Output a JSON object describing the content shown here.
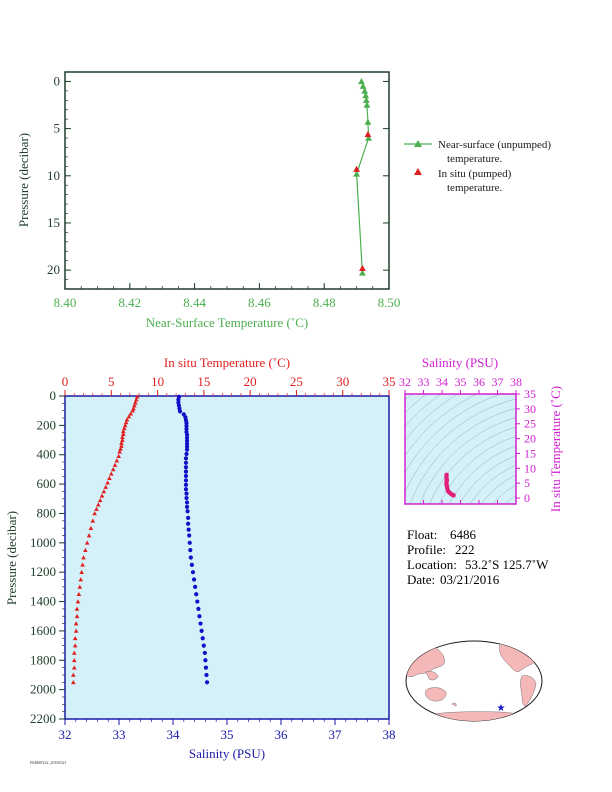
{
  "colors": {
    "green": "#4caf50",
    "dark_green": "#1f3d2a",
    "red": "#e02020",
    "blue": "#1010c8",
    "magenta": "#d020d0",
    "plot_bg": "#d4f0f8",
    "land": "#f4b8b8",
    "ocean": "#ffffff"
  },
  "chart_data": [
    {
      "type": "line",
      "xlabel": "Near-Surface Temperature (˚C)",
      "ylabel": "Pressure (decibar)",
      "xlim": [
        8.4,
        8.5
      ],
      "ylim": [
        22,
        -1
      ],
      "x_ticks": [
        "8.40",
        "8.42",
        "8.44",
        "8.46",
        "8.48",
        "8.50"
      ],
      "y_ticks": [
        "0",
        "5",
        "10",
        "15",
        "20"
      ],
      "series": [
        {
          "name": "Near-surface (unpumped) temperature.",
          "marker": "triangle",
          "points": [
            [
              8.4915,
              0.0
            ],
            [
              8.492,
              0.5
            ],
            [
              8.4925,
              1.0
            ],
            [
              8.4928,
              1.5
            ],
            [
              8.493,
              2.0
            ],
            [
              8.4932,
              2.5
            ],
            [
              8.4935,
              4.3
            ],
            [
              8.4937,
              6.0
            ],
            [
              8.49,
              9.8
            ],
            [
              8.4918,
              20.3
            ]
          ]
        },
        {
          "name": "In situ (pumped) temperature.",
          "marker": "triangle",
          "points": [
            [
              8.4935,
              5.6
            ],
            [
              8.49,
              9.3
            ],
            [
              8.4918,
              19.8
            ]
          ]
        }
      ],
      "legend_position": "right"
    },
    {
      "type": "scatter",
      "xlabel_top": "In situ Temperature (˚C)",
      "xlabel_bottom": "Salinity (PSU)",
      "ylabel": "Pressure (decibar)",
      "xlim_temperature": [
        0,
        35
      ],
      "xlim_salinity": [
        32,
        38
      ],
      "ylim": [
        2200,
        0
      ],
      "x_ticks_top": [
        "0",
        "5",
        "10",
        "15",
        "20",
        "25",
        "30",
        "35"
      ],
      "x_ticks_bottom": [
        "32",
        "33",
        "34",
        "35",
        "36",
        "37",
        "38"
      ],
      "y_ticks": [
        "0",
        "200",
        "400",
        "600",
        "800",
        "1000",
        "1200",
        "1400",
        "1600",
        "1800",
        "2000",
        "2200"
      ],
      "temperature_points": [
        [
          7.8,
          5
        ],
        [
          7.7,
          25
        ],
        [
          7.6,
          45
        ],
        [
          7.5,
          65
        ],
        [
          7.4,
          85
        ],
        [
          7.3,
          100
        ],
        [
          7.1,
          120
        ],
        [
          6.9,
          140
        ],
        [
          6.7,
          160
        ],
        [
          6.6,
          180
        ],
        [
          6.5,
          200
        ],
        [
          6.4,
          220
        ],
        [
          6.3,
          240
        ],
        [
          6.3,
          260
        ],
        [
          6.2,
          280
        ],
        [
          6.2,
          300
        ],
        [
          6.1,
          320
        ],
        [
          6.1,
          340
        ],
        [
          6.0,
          360
        ],
        [
          5.9,
          380
        ],
        [
          5.8,
          410
        ],
        [
          5.6,
          440
        ],
        [
          5.4,
          470
        ],
        [
          5.2,
          500
        ],
        [
          5.0,
          530
        ],
        [
          4.8,
          560
        ],
        [
          4.6,
          590
        ],
        [
          4.4,
          620
        ],
        [
          4.2,
          650
        ],
        [
          4.0,
          680
        ],
        [
          3.8,
          710
        ],
        [
          3.6,
          740
        ],
        [
          3.4,
          770
        ],
        [
          3.2,
          800
        ],
        [
          3.0,
          850
        ],
        [
          2.8,
          900
        ],
        [
          2.6,
          950
        ],
        [
          2.4,
          1000
        ],
        [
          2.2,
          1050
        ],
        [
          2.0,
          1100
        ],
        [
          1.9,
          1150
        ],
        [
          1.8,
          1200
        ],
        [
          1.7,
          1250
        ],
        [
          1.6,
          1300
        ],
        [
          1.5,
          1350
        ],
        [
          1.4,
          1400
        ],
        [
          1.3,
          1450
        ],
        [
          1.3,
          1500
        ],
        [
          1.2,
          1550
        ],
        [
          1.2,
          1600
        ],
        [
          1.1,
          1650
        ],
        [
          1.1,
          1700
        ],
        [
          1.0,
          1750
        ],
        [
          1.0,
          1800
        ],
        [
          1.0,
          1850
        ],
        [
          0.9,
          1900
        ],
        [
          0.9,
          1950
        ]
      ],
      "salinity_points": [
        [
          34.11,
          5
        ],
        [
          34.1,
          25
        ],
        [
          34.1,
          45
        ],
        [
          34.11,
          65
        ],
        [
          34.12,
          85
        ],
        [
          34.13,
          105
        ],
        [
          34.2,
          125
        ],
        [
          34.23,
          145
        ],
        [
          34.24,
          165
        ],
        [
          34.25,
          185
        ],
        [
          34.25,
          205
        ],
        [
          34.25,
          225
        ],
        [
          34.25,
          245
        ],
        [
          34.26,
          265
        ],
        [
          34.26,
          285
        ],
        [
          34.26,
          305
        ],
        [
          34.26,
          325
        ],
        [
          34.26,
          345
        ],
        [
          34.26,
          365
        ],
        [
          34.25,
          395
        ],
        [
          34.24,
          425
        ],
        [
          34.24,
          455
        ],
        [
          34.24,
          485
        ],
        [
          34.24,
          515
        ],
        [
          34.24,
          545
        ],
        [
          34.24,
          575
        ],
        [
          34.24,
          605
        ],
        [
          34.24,
          635
        ],
        [
          34.25,
          665
        ],
        [
          34.25,
          695
        ],
        [
          34.26,
          725
        ],
        [
          34.26,
          755
        ],
        [
          34.27,
          785
        ],
        [
          34.28,
          830
        ],
        [
          34.28,
          870
        ],
        [
          34.29,
          910
        ],
        [
          34.3,
          950
        ],
        [
          34.31,
          1000
        ],
        [
          34.32,
          1050
        ],
        [
          34.33,
          1100
        ],
        [
          34.35,
          1150
        ],
        [
          34.37,
          1200
        ],
        [
          34.39,
          1250
        ],
        [
          34.41,
          1300
        ],
        [
          34.43,
          1350
        ],
        [
          34.45,
          1400
        ],
        [
          34.47,
          1450
        ],
        [
          34.49,
          1500
        ],
        [
          34.51,
          1550
        ],
        [
          34.53,
          1600
        ],
        [
          34.55,
          1650
        ],
        [
          34.57,
          1700
        ],
        [
          34.59,
          1750
        ],
        [
          34.6,
          1800
        ],
        [
          34.61,
          1850
        ],
        [
          34.62,
          1900
        ],
        [
          34.63,
          1950
        ]
      ]
    },
    {
      "type": "scatter",
      "xlabel": "Salinity (PSU)",
      "ylabel": "In situ Temperature (˚C)",
      "xlim": [
        32,
        38
      ],
      "ylim": [
        -2,
        35
      ],
      "x_ticks": [
        "32",
        "33",
        "34",
        "35",
        "36",
        "37",
        "38"
      ],
      "y_ticks": [
        "0",
        "5",
        "10",
        "15",
        "20",
        "25",
        "30",
        "35"
      ],
      "points": [
        [
          34.25,
          7.8
        ],
        [
          34.24,
          7.2
        ],
        [
          34.25,
          6.5
        ],
        [
          34.26,
          6.0
        ],
        [
          34.25,
          5.6
        ],
        [
          34.24,
          5.0
        ],
        [
          34.25,
          4.4
        ],
        [
          34.27,
          3.8
        ],
        [
          34.29,
          3.2
        ],
        [
          34.31,
          2.6
        ],
        [
          34.35,
          2.2
        ],
        [
          34.41,
          1.8
        ],
        [
          34.47,
          1.5
        ],
        [
          34.53,
          1.2
        ],
        [
          34.59,
          1.0
        ],
        [
          34.63,
          0.9
        ]
      ]
    }
  ],
  "info": {
    "float_label": "Float:",
    "float_value": "6486",
    "profile_label": "Profile:",
    "profile_value": "222",
    "location_label": "Location:",
    "location_value": "53.2˚S  125.7˚W",
    "date_label": "Date:",
    "date_value": "03/21/2016"
  },
  "legend": {
    "unpumped_line1": "Near-surface (unpumped)",
    "unpumped_line2": "temperature.",
    "pumped_line1": "In situ (pumped)",
    "pumped_line2": "temperature."
  },
  "footer_code": "F6486P222_20160321"
}
